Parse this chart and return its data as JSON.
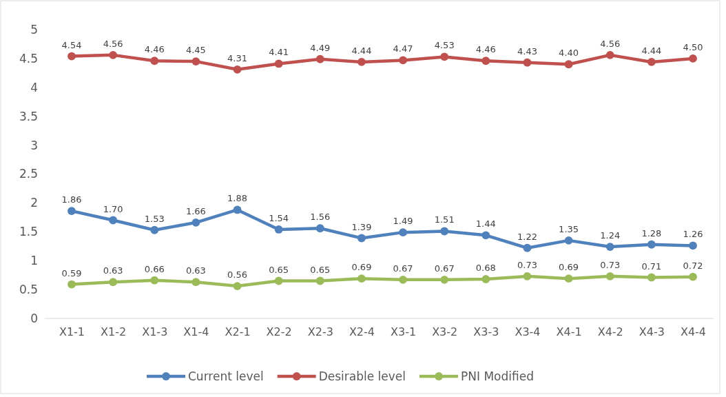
{
  "chart_data": {
    "type": "line",
    "categories": [
      "X1-1",
      "X1-2",
      "X1-3",
      "X1-4",
      "X2-1",
      "X2-2",
      "X2-3",
      "X2-4",
      "X3-1",
      "X3-2",
      "X3-3",
      "X3-4",
      "X4-1",
      "X4-2",
      "X4-3",
      "X4-4"
    ],
    "series": [
      {
        "name": "Current level",
        "color": "#4f81bd",
        "values": [
          1.86,
          1.7,
          1.53,
          1.66,
          1.88,
          1.54,
          1.56,
          1.39,
          1.49,
          1.51,
          1.44,
          1.22,
          1.35,
          1.24,
          1.28,
          1.26
        ],
        "value_labels": [
          "1.86",
          "1.70",
          "1.53",
          "1.66",
          "1.88",
          "1.54",
          "1.56",
          "1.39",
          "1.49",
          "1.51",
          "1.44",
          "1.22",
          "1.35",
          "1.24",
          "1.28",
          "1.26"
        ]
      },
      {
        "name": "Desirable level",
        "color": "#c0504d",
        "values": [
          4.54,
          4.56,
          4.46,
          4.45,
          4.31,
          4.41,
          4.49,
          4.44,
          4.47,
          4.53,
          4.46,
          4.43,
          4.4,
          4.56,
          4.44,
          4.5
        ],
        "value_labels": [
          "4.54",
          "4.56",
          "4.46",
          "4.45",
          "4.31",
          "4.41",
          "4.49",
          "4.44",
          "4.47",
          "4.53",
          "4.46",
          "4.43",
          "4.40",
          "4.56",
          "4.44",
          "4.50"
        ]
      },
      {
        "name": "PNI Modified",
        "color": "#9bbb59",
        "values": [
          0.59,
          0.63,
          0.66,
          0.63,
          0.56,
          0.65,
          0.65,
          0.69,
          0.67,
          0.67,
          0.68,
          0.73,
          0.69,
          0.73,
          0.71,
          0.72
        ],
        "value_labels": [
          "0.59",
          "0.63",
          "0.66",
          "0.63",
          "0.56",
          "0.65",
          "0.65",
          "0.69",
          "0.67",
          "0.67",
          "0.68",
          "0.73",
          "0.69",
          "0.73",
          "0.71",
          "0.72"
        ]
      }
    ],
    "ylim": [
      0,
      5
    ],
    "yticks": [
      0,
      0.5,
      1,
      1.5,
      2,
      2.5,
      3,
      3.5,
      4,
      4.5,
      5
    ],
    "grid": false,
    "legend": "bottom",
    "marker": "circle",
    "line_style": "solid"
  }
}
